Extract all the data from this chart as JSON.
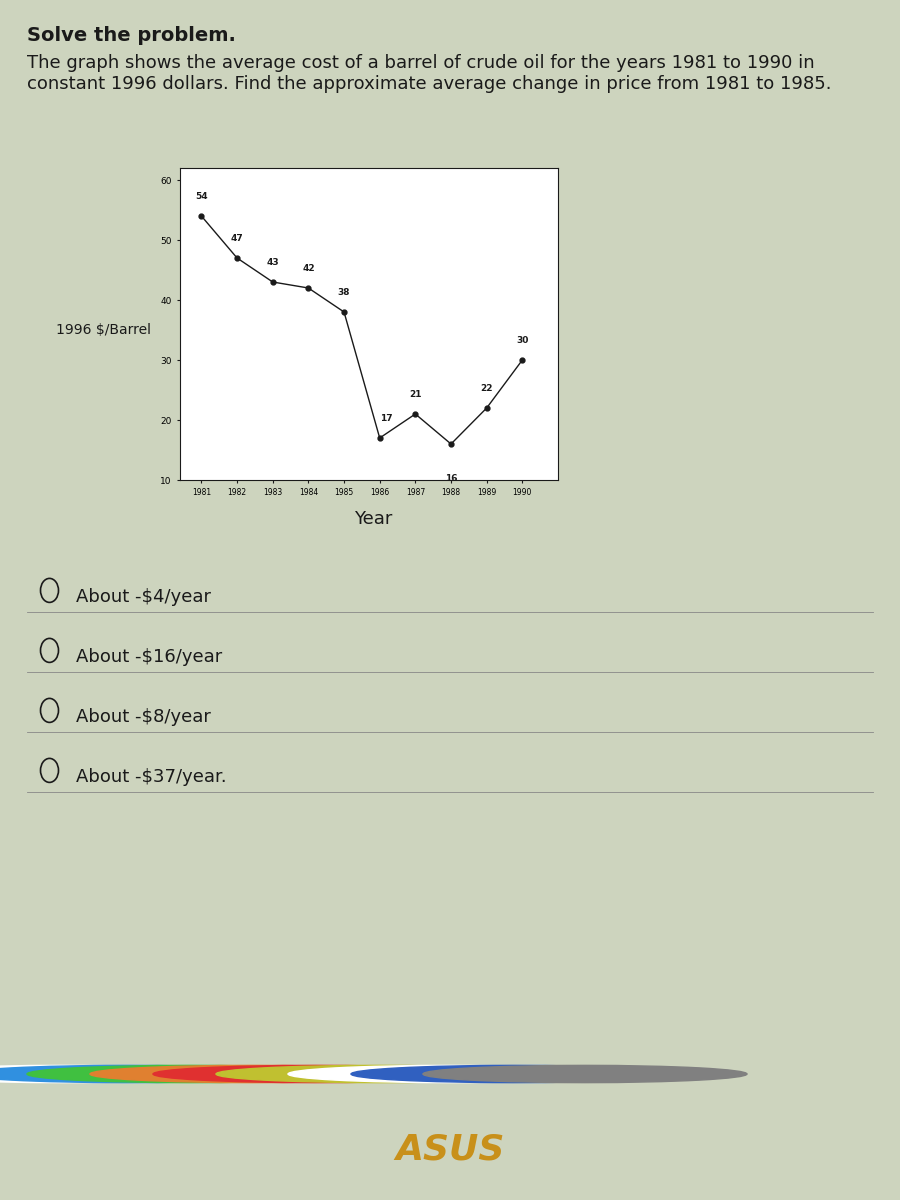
{
  "title_bold": "Solve the problem.",
  "description": "The graph shows the average cost of a barrel of crude oil for the years 1981 to 1990 in\nconstant 1996 dollars. Find the approximate average change in price from 1981 to 1985.",
  "years": [
    1981,
    1982,
    1983,
    1984,
    1985,
    1986,
    1987,
    1988,
    1989,
    1990
  ],
  "prices": [
    54,
    47,
    43,
    42,
    38,
    17,
    21,
    16,
    22,
    30
  ],
  "ylabel": "1996 $/Barrel",
  "xlabel": "Year",
  "ylim": [
    10,
    62
  ],
  "yticks": [
    10,
    20,
    30,
    40,
    50,
    60
  ],
  "choices": [
    "About -$4/year",
    "About -$16/year",
    "About -$8/year",
    "About -$37/year."
  ],
  "bg_color": "#cdd4be",
  "plot_bg": "#ffffff",
  "line_color": "#1a1a1a",
  "text_color": "#1a1a1a",
  "title_fontsize": 14,
  "desc_fontsize": 13,
  "choice_fontsize": 13,
  "taskbar_color": "#3a2e10",
  "taskbar2_color": "#1a1200",
  "asus_color": "#c8901a"
}
